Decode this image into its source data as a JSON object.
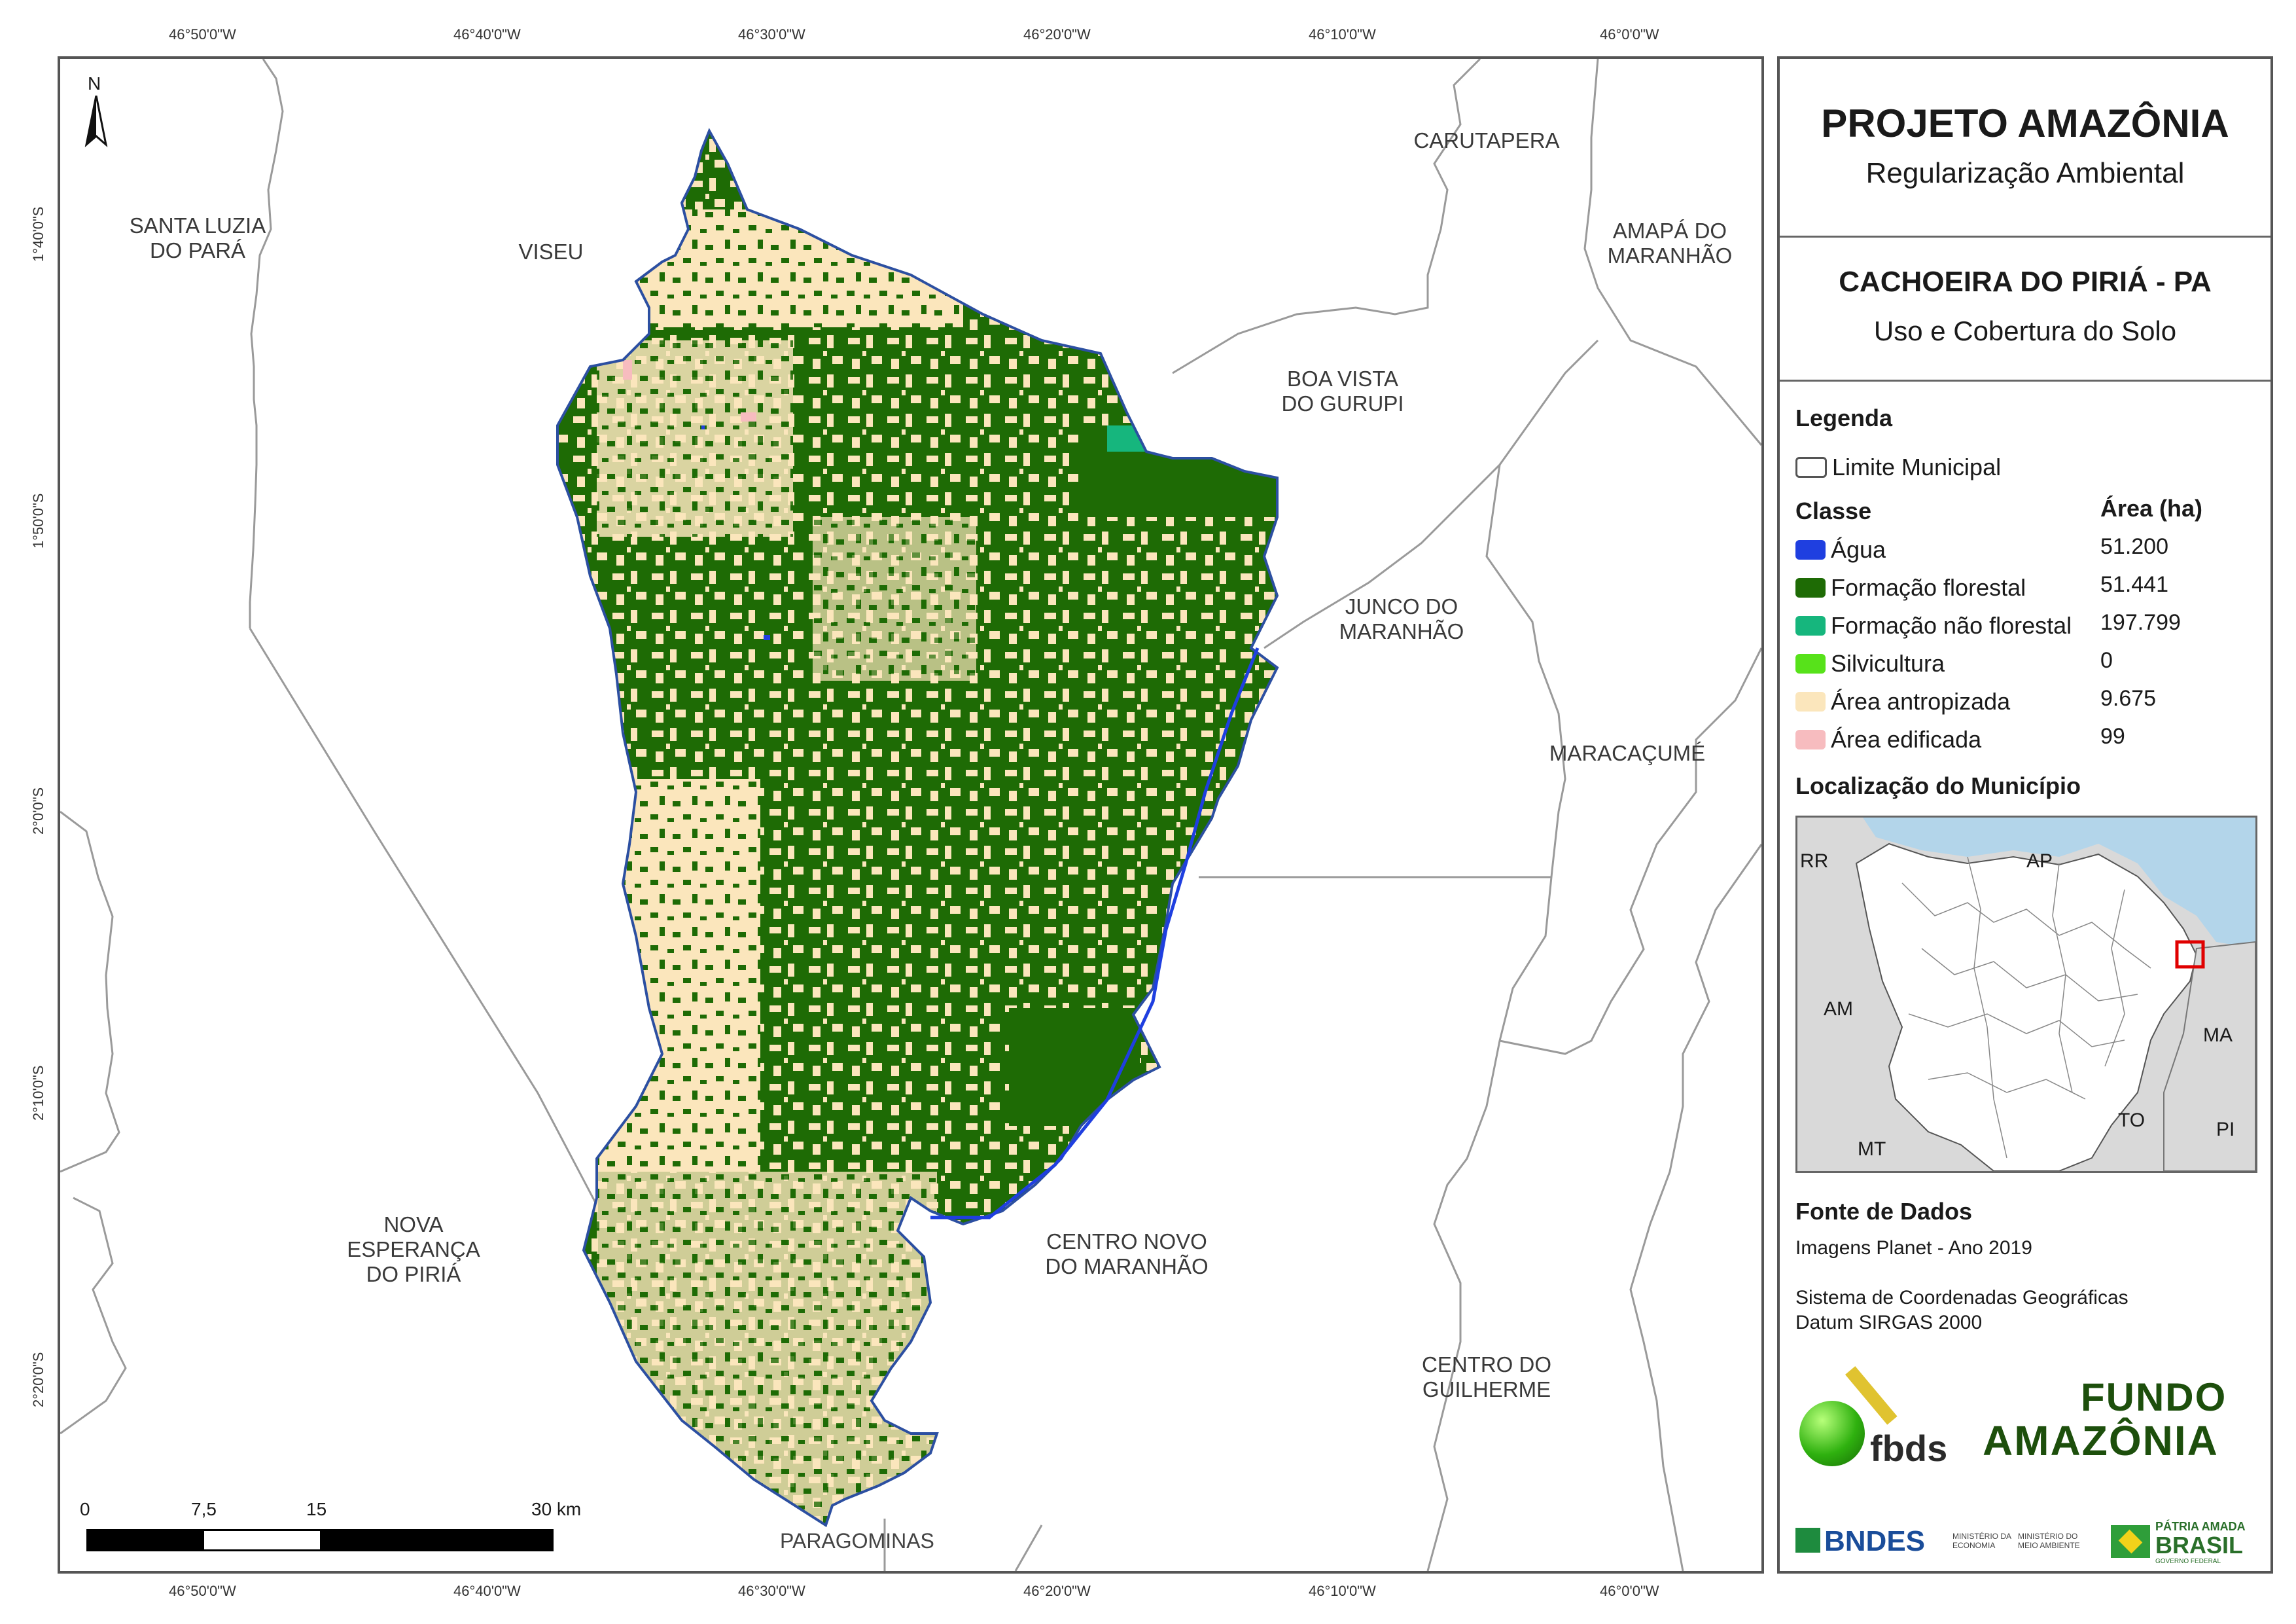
{
  "coords": {
    "top": [
      "46°50'0\"W",
      "46°40'0\"W",
      "46°30'0\"W",
      "46°20'0\"W",
      "46°10'0\"W",
      "46°0'0\"W"
    ],
    "bottom": [
      "46°50'0\"W",
      "46°40'0\"W",
      "46°30'0\"W",
      "46°20'0\"W",
      "46°10'0\"W",
      "46°0'0\"W"
    ],
    "left": [
      "1°40'0\"S",
      "1°50'0\"S",
      "2°0'0\"S",
      "2°10'0\"S",
      "2°20'0\"S"
    ]
  },
  "municipalities": {
    "santa_luzia": "SANTA LUZIA\nDO PARÁ",
    "viseu": "VISEU",
    "carutapera": "CARUTAPERA",
    "amapa_do_maranhao": "AMAPÁ DO\nMARANHÃO",
    "boa_vista": "BOA VISTA\nDO GURUPI",
    "junco": "JUNCO DO\nMARANHÃO",
    "maracacume": "MARACAÇUMÉ",
    "centro_novo": "CENTRO NOVO\nDO MARANHÃO",
    "centro_guilherme": "CENTRO DO\nGUILHERME",
    "nova_esperanca": "NOVA\nESPERANÇA\nDO PIRIÁ",
    "paragominas": "PARAGOMINAS"
  },
  "north_arrow": "N",
  "scale_bar": {
    "labels": [
      "0",
      "7,5",
      "15",
      "30 km"
    ]
  },
  "panel": {
    "title": "PROJETO AMAZÔNIA",
    "subtitle": "Regularização Ambiental",
    "municipality": "CACHOEIRA DO PIRIÁ - PA",
    "theme": "Uso e Cobertura do Solo",
    "legend_title": "Legenda",
    "limit_label": "Limite Municipal",
    "class_header": "Classe",
    "area_header": "Área (ha)",
    "classes": [
      {
        "label": "Água",
        "value": "51.200",
        "color": "#1f3fe0"
      },
      {
        "label": "Formação florestal",
        "value": "51.441",
        "color": "#1e6b05"
      },
      {
        "label": "Formação não florestal",
        "value": "197.799",
        "color": "#16b67d"
      },
      {
        "label": "Silvicultura",
        "value": "0",
        "color": "#57e21a"
      },
      {
        "label": "Área antropizada",
        "value": "9.675",
        "color": "#fbe6bc"
      },
      {
        "label": "Área edificada",
        "value": "99",
        "color": "#f7bcbf"
      }
    ],
    "location_title": "Localização do Município",
    "inset_states": [
      "RR",
      "AP",
      "AM",
      "MA",
      "MT",
      "TO",
      "PI"
    ],
    "sources_title": "Fonte de Dados",
    "source_line": "Imagens Planet - Ano 2019",
    "crs_line1": "Sistema de Coordenadas Geográficas",
    "crs_line2": "Datum SIRGAS 2000",
    "logos": {
      "fbds": "fbds",
      "fundo": "FUNDO",
      "amazonia": "AMAZÔNIA",
      "bndes": "BNDES",
      "min_economia": "MINISTÉRIO DA\nECONOMIA",
      "min_meio": "MINISTÉRIO DO\nMEIO AMBIENTE",
      "patria1": "PÁTRIA AMADA",
      "patria2": "BRASIL",
      "gov": "GOVERNO FEDERAL"
    }
  }
}
